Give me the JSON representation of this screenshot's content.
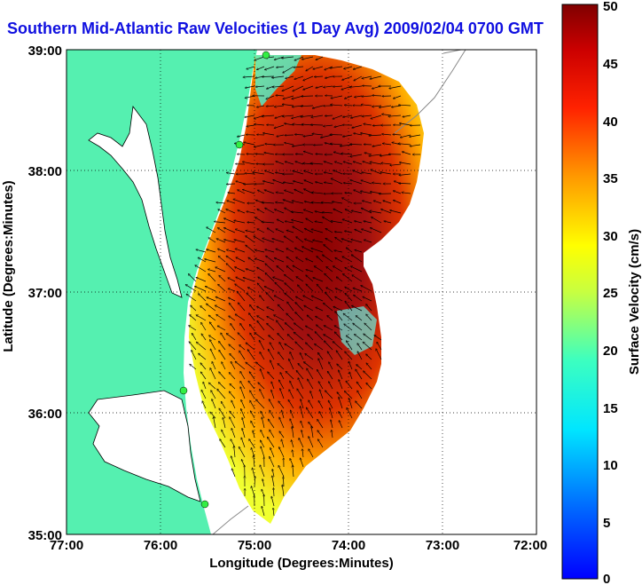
{
  "map": {
    "title": "Southern Mid-Atlantic Raw Velocities (1 Day Avg) 2009/02/04 0700 GMT",
    "xlabel": "Longitude (Degrees:Minutes)",
    "ylabel": "Latitude (Degrees:Minutes)",
    "x_ticks": [
      "77:00",
      "76:00",
      "75:00",
      "74:00",
      "73:00",
      "72:00"
    ],
    "y_ticks": [
      "39:00",
      "38:00",
      "37:00",
      "36:00",
      "35:00"
    ],
    "x_range": [
      -77,
      -72
    ],
    "y_range": [
      35,
      39
    ],
    "grid": true,
    "colors": {
      "land": "#55f0b0",
      "water": "#ffffff",
      "coast": "#000000",
      "station": "#33ee44",
      "title": "#1010e0"
    }
  },
  "colorbar": {
    "label": "Surface Velocity (cm/s)",
    "ticks": [
      "0",
      "5",
      "10",
      "15",
      "20",
      "25",
      "30",
      "35",
      "40",
      "45",
      "50"
    ],
    "range": [
      0,
      50
    ],
    "colormap": "jet"
  }
}
